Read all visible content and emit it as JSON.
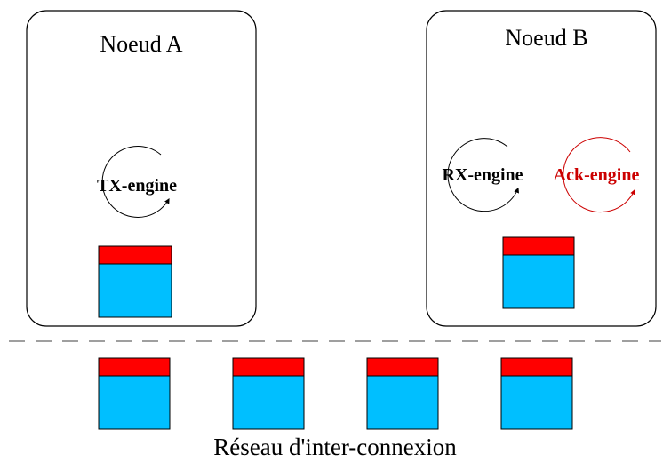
{
  "nodes": {
    "a": {
      "title": "Noeud A",
      "engine": "TX-engine"
    },
    "b": {
      "title": "Noeud B",
      "engines": [
        "RX-engine",
        "Ack-engine"
      ]
    }
  },
  "network": {
    "label": "Réseau d'inter-connexion",
    "packet_count": 4
  },
  "colors": {
    "packet_header": "#ff0000",
    "packet_body": "#00bfff",
    "outline": "#000000",
    "ack_engine": "#cc0000",
    "separator": "#666666"
  }
}
